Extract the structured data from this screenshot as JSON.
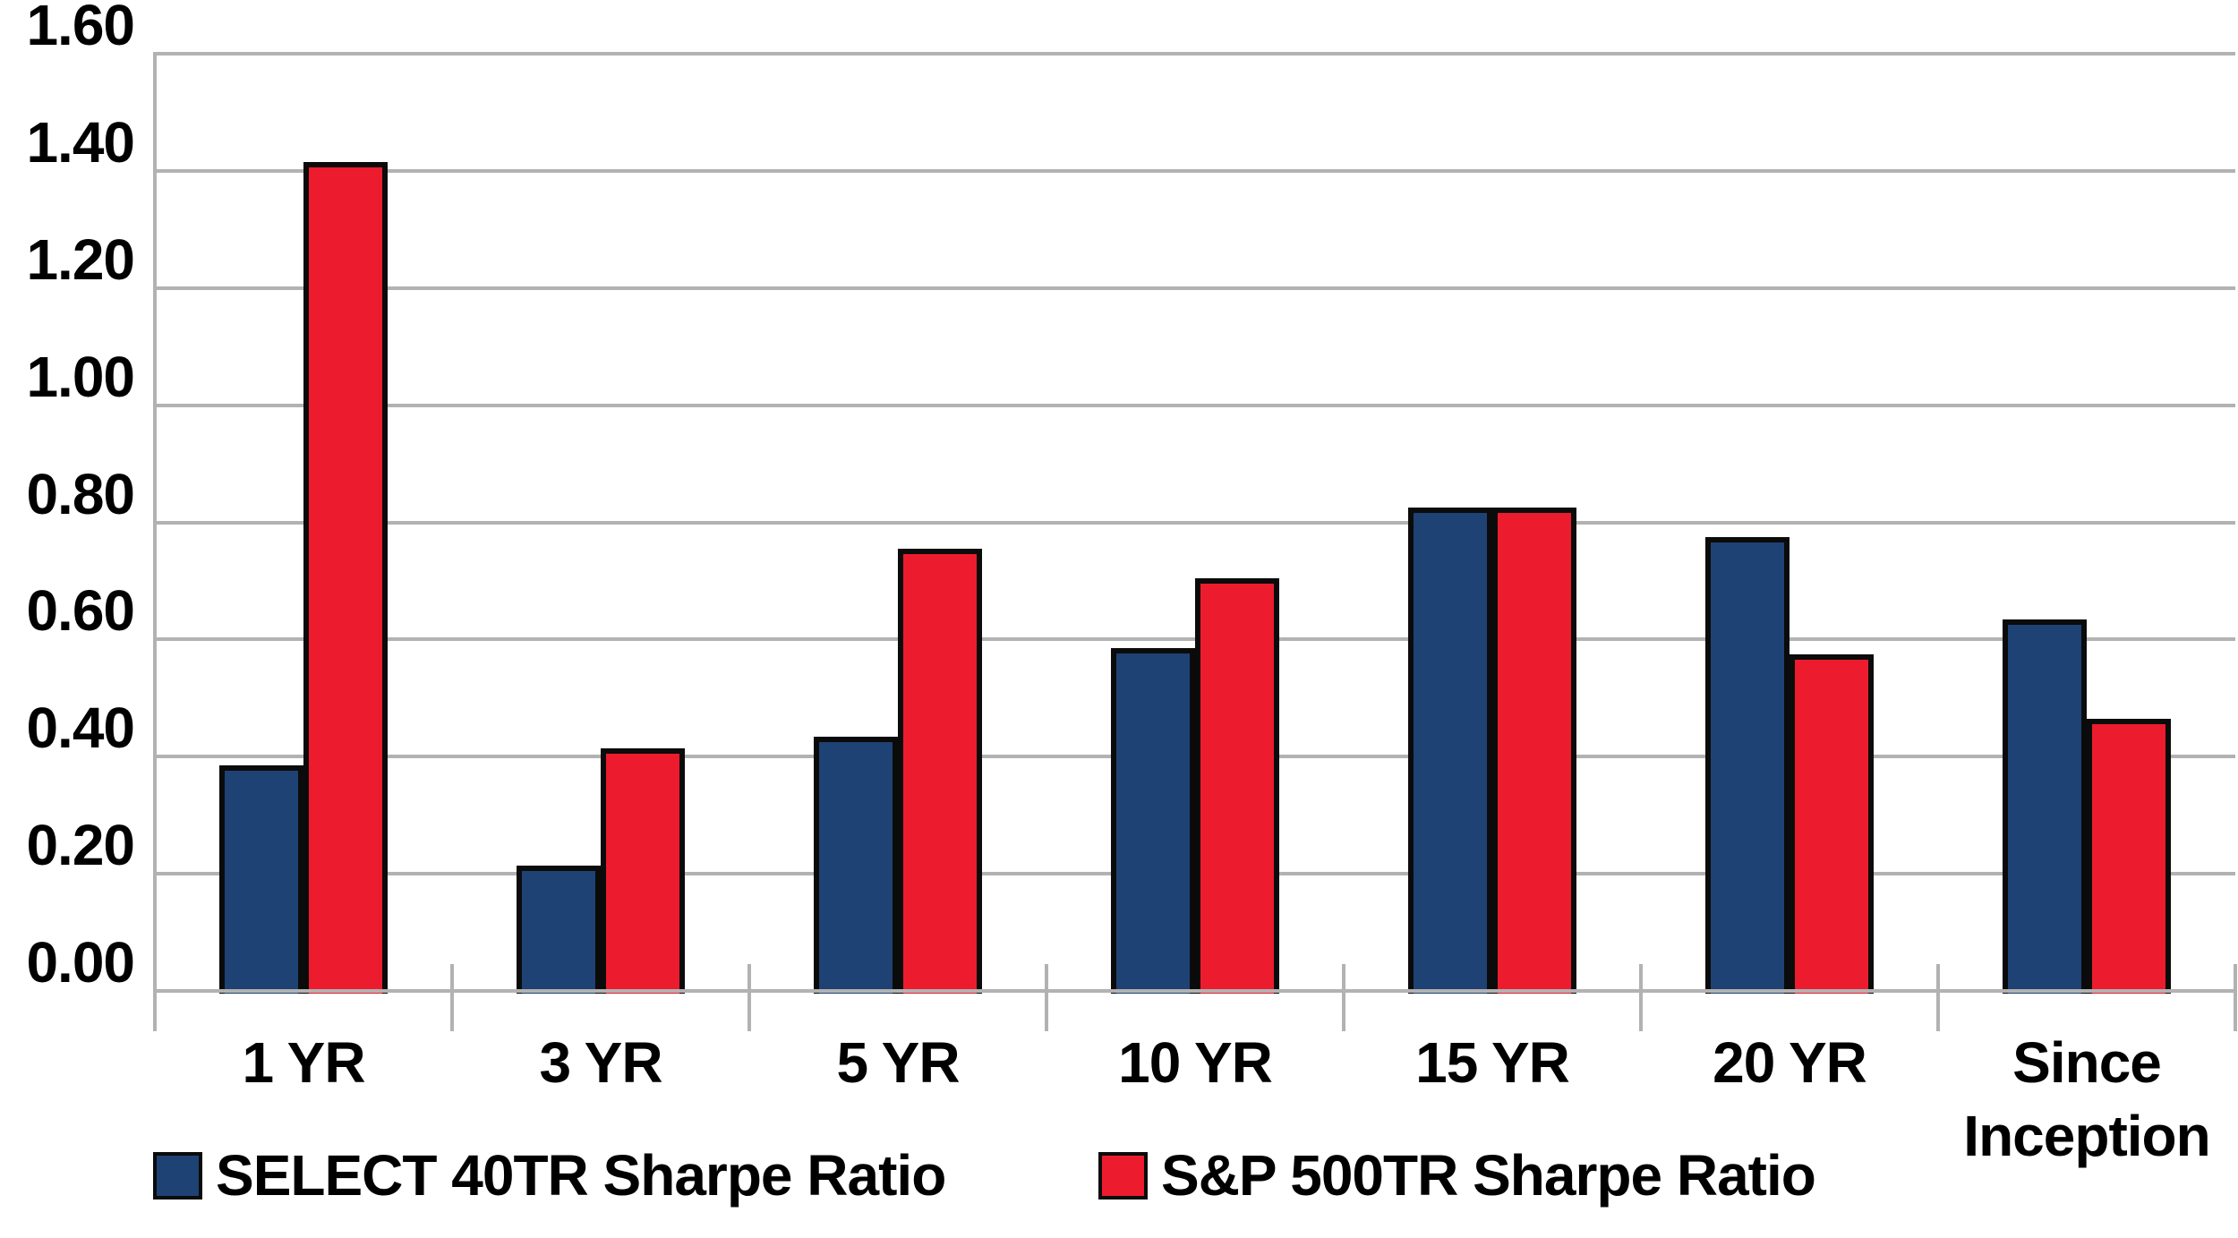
{
  "chart_data": {
    "type": "bar",
    "title": "",
    "xlabel": "",
    "ylabel": "",
    "categories": [
      "1 YR",
      "3 YR",
      "5 YR",
      "10 YR",
      "15 YR",
      "20 YR",
      "Since\nInception"
    ],
    "series": [
      {
        "name": "SELECT 40TR Sharpe Ratio",
        "color": "#1e4273",
        "values": [
          0.38,
          0.21,
          0.43,
          0.58,
          0.82,
          0.77,
          0.63
        ]
      },
      {
        "name": "S&P 500TR Sharpe Ratio",
        "color": "#ec1c2e",
        "values": [
          1.41,
          0.41,
          0.75,
          0.7,
          0.82,
          0.57,
          0.46
        ]
      }
    ],
    "ylim": [
      0,
      1.6
    ],
    "ytick_step": 0.2,
    "ytick_labels": [
      "0.00",
      "0.20",
      "0.40",
      "0.60",
      "0.80",
      "1.00",
      "1.20",
      "1.40",
      "1.60"
    ],
    "grid": true,
    "legend_position": "bottom",
    "colors": {
      "bar_border": "#0b0b0b",
      "gridline": "#b2b2b2",
      "axis": "#b2b2b2",
      "text": "#000000",
      "background": "#ffffff"
    }
  },
  "legend": {
    "items": [
      {
        "label": "SELECT 40TR Sharpe Ratio",
        "color": "#1e4273"
      },
      {
        "label": "S&P 500TR Sharpe Ratio",
        "color": "#ec1c2e"
      }
    ]
  }
}
